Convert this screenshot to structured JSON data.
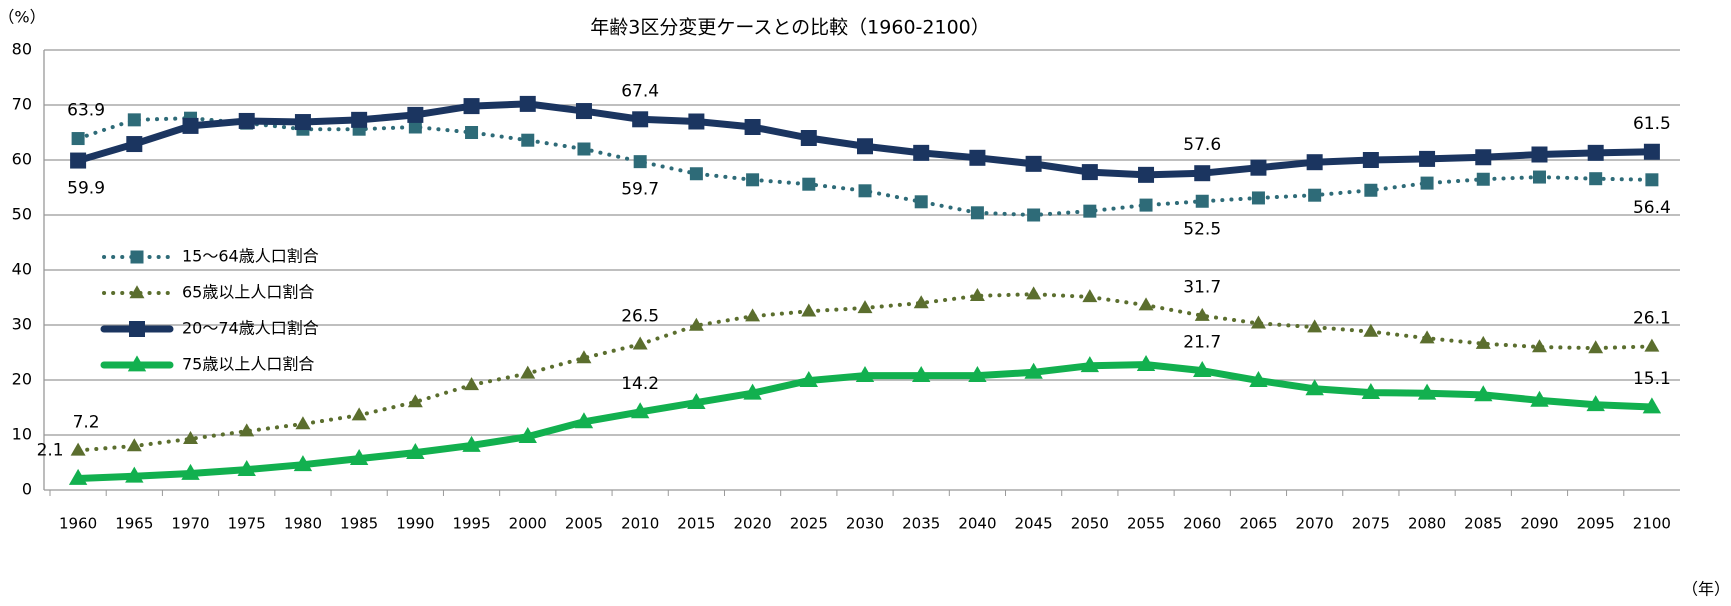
{
  "chart_data": {
    "type": "line",
    "title": "年齢3区分変更ケースとの比較（1960-2100）",
    "y_label": "（%）",
    "x_label": "（年）",
    "categories": [
      "1960",
      "1965",
      "1970",
      "1975",
      "1980",
      "1985",
      "1990",
      "1995",
      "2000",
      "2005",
      "2010",
      "2015",
      "2020",
      "2025",
      "2030",
      "2035",
      "2040",
      "2045",
      "2050",
      "2055",
      "2060",
      "2065",
      "2070",
      "2075",
      "2080",
      "2085",
      "2090",
      "2095",
      "2100"
    ],
    "ylim": [
      0,
      80
    ],
    "yticks": [
      0,
      10,
      20,
      30,
      40,
      50,
      60,
      70,
      80
    ],
    "grid": true,
    "legend": "left",
    "series": [
      {
        "name": "15〜64歳人口割合",
        "color": "#2e6b78",
        "line_style": "dotted",
        "marker": "square",
        "values": [
          63.9,
          67.3,
          67.6,
          66.7,
          65.6,
          65.6,
          66.0,
          65.0,
          63.6,
          62.0,
          59.7,
          57.5,
          56.4,
          55.6,
          54.4,
          52.4,
          50.4,
          50.0,
          50.7,
          51.8,
          52.5,
          53.1,
          53.6,
          54.5,
          55.8,
          56.5,
          56.9,
          56.6,
          56.4
        ]
      },
      {
        "name": "65歳以上人口割合",
        "color": "#5b6e2e",
        "line_style": "dotted",
        "marker": "triangle",
        "values": [
          7.2,
          8.0,
          9.3,
          10.7,
          12.0,
          13.6,
          16.0,
          19.1,
          21.2,
          24.0,
          26.5,
          29.9,
          31.6,
          32.5,
          33.1,
          34.0,
          35.3,
          35.6,
          35.1,
          33.6,
          31.7,
          30.3,
          29.6,
          28.8,
          27.6,
          26.6,
          26.0,
          25.8,
          26.1
        ]
      },
      {
        "name": "20〜74歳人口割合",
        "color": "#1b3560",
        "line_style": "solid",
        "marker": "square",
        "values": [
          59.9,
          62.9,
          66.2,
          67.1,
          66.9,
          67.3,
          68.2,
          69.8,
          70.2,
          68.9,
          67.4,
          67.0,
          66.0,
          64.0,
          62.5,
          61.3,
          60.4,
          59.3,
          57.8,
          57.3,
          57.6,
          58.6,
          59.6,
          60.0,
          60.2,
          60.5,
          61.0,
          61.3,
          61.5
        ]
      },
      {
        "name": "75歳以上人口割合",
        "color": "#12b04f",
        "line_style": "solid",
        "marker": "triangle",
        "values": [
          2.1,
          2.5,
          3.0,
          3.7,
          4.6,
          5.7,
          6.8,
          8.1,
          9.7,
          12.4,
          14.2,
          15.9,
          17.6,
          19.9,
          20.8,
          20.8,
          20.8,
          21.4,
          22.6,
          22.8,
          21.7,
          19.9,
          18.4,
          17.7,
          17.6,
          17.3,
          16.3,
          15.5,
          15.1
        ]
      }
    ]
  }
}
